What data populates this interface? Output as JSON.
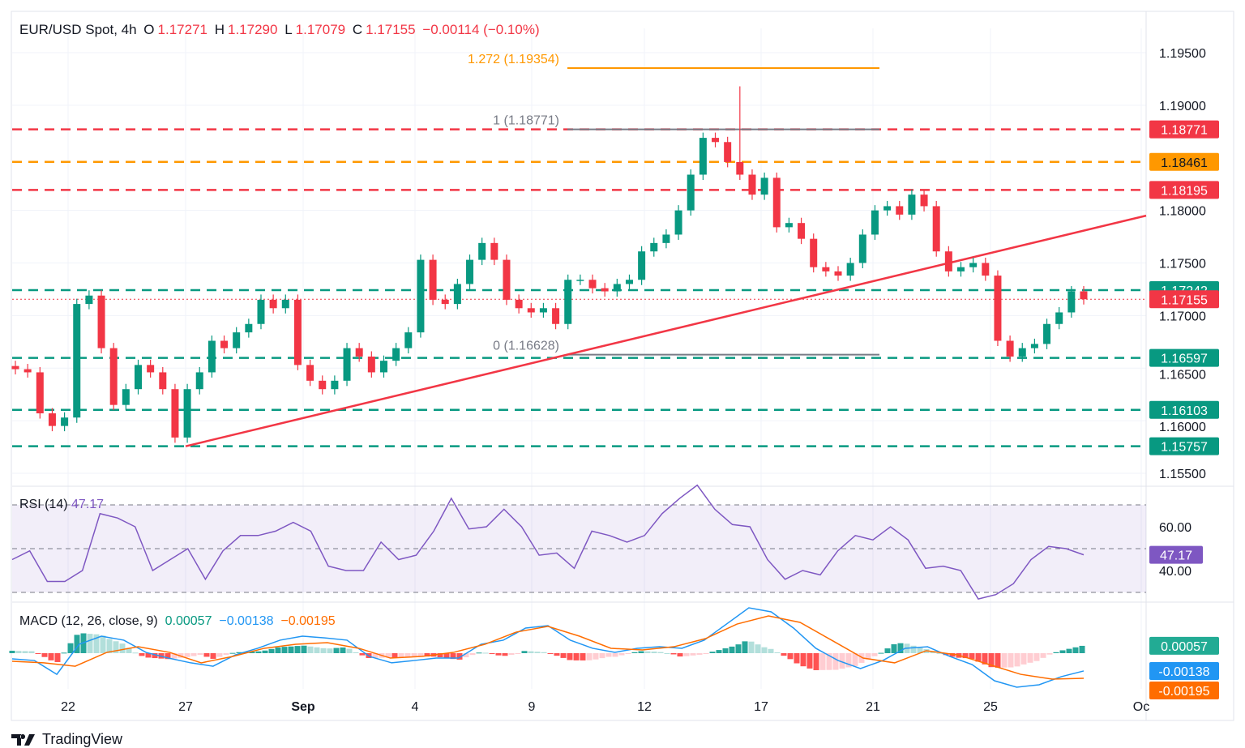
{
  "header": {
    "symbol": "EUR/USD Spot, 4h",
    "o_label": "O",
    "open": "1.17271",
    "h_label": "H",
    "high": "1.17290",
    "l_label": "L",
    "low": "1.17079",
    "c_label": "C",
    "close": "1.17155",
    "change": "−0.00114 (−0.10%)"
  },
  "colors": {
    "up": "#089981",
    "down": "#f23645",
    "fib": "#ff9800",
    "fib_grey": "#787b86",
    "rsi": "#7e57c2",
    "macd": "#2196f3",
    "signal": "#ff6d00",
    "hist_up": "#26a69a",
    "hist_down": "#ff5252"
  },
  "chart_data": [
    {
      "type": "candlestick",
      "title": "EUR/USD Spot, 4h",
      "ylim": [
        1.154,
        1.1975
      ],
      "y_ticks": [
        "1.19500",
        "1.19000",
        "1.18000",
        "1.17500",
        "1.17000",
        "1.16500",
        "1.16000",
        "1.15500"
      ],
      "x_ticks": [
        "22",
        "27",
        "Sep",
        "4",
        "9",
        "12",
        "17",
        "21",
        "25",
        "Oc"
      ],
      "closes": [
        1.1649,
        1.1646,
        1.1607,
        1.1595,
        1.1603,
        1.1711,
        1.1719,
        1.1669,
        1.1615,
        1.163,
        1.1653,
        1.1646,
        1.163,
        1.1584,
        1.163,
        1.1646,
        1.1676,
        1.1669,
        1.1684,
        1.1692,
        1.1715,
        1.1707,
        1.1715,
        1.1653,
        1.1638,
        1.163,
        1.1638,
        1.1669,
        1.1661,
        1.1646,
        1.1657,
        1.1669,
        1.1684,
        1.1753,
        1.1715,
        1.1711,
        1.173,
        1.1753,
        1.1769,
        1.1753,
        1.1715,
        1.1707,
        1.1703,
        1.1707,
        1.1692,
        1.1734,
        1.1734,
        1.1726,
        1.1723,
        1.173,
        1.1734,
        1.1761,
        1.1769,
        1.1777,
        1.18,
        1.1834,
        1.1869,
        1.1865,
        1.1846,
        1.1834,
        1.1815,
        1.1831,
        1.1784,
        1.1788,
        1.1773,
        1.1746,
        1.1742,
        1.1738,
        1.175,
        1.1777,
        1.18,
        1.1804,
        1.1796,
        1.1815,
        1.1804,
        1.1761,
        1.1742,
        1.1746,
        1.175,
        1.1738,
        1.1676,
        1.1661,
        1.1669,
        1.1673,
        1.1692,
        1.1703,
        1.1723,
        1.17155
      ],
      "spike_high": 1.1918,
      "levels": [
        {
          "price": 1.18771,
          "label": "1.18771",
          "color": "#f23645",
          "style": "dashed"
        },
        {
          "price": 1.18461,
          "label": "1.18461",
          "color": "#ff9800",
          "style": "dashed"
        },
        {
          "price": 1.18195,
          "label": "1.18195",
          "color": "#f23645",
          "style": "dashed"
        },
        {
          "price": 1.17242,
          "label": "1.17242",
          "color": "#089981",
          "style": "dashed"
        },
        {
          "price": 1.17155,
          "label": "1.17155",
          "color": "#f23645",
          "style": "dotted"
        },
        {
          "price": 1.16597,
          "label": "1.16597",
          "color": "#089981",
          "style": "dashed"
        },
        {
          "price": 1.16103,
          "label": "1.16103",
          "color": "#089981",
          "style": "dashed"
        },
        {
          "price": 1.15757,
          "label": "1.15757",
          "color": "#089981",
          "style": "dashed"
        }
      ],
      "fibonacci": [
        {
          "ratio_label": "1.272 (1.19354)",
          "price": 1.19354,
          "color": "#ff9800"
        },
        {
          "ratio_label": "1 (1.18771)",
          "price": 1.18771,
          "color": "#787b86"
        },
        {
          "ratio_label": "0 (1.16628)",
          "price": 1.16628,
          "color": "#787b86"
        }
      ],
      "trendline": {
        "start_price": 1.15757,
        "end_price": 1.1795,
        "color": "#f23645"
      }
    },
    {
      "type": "line",
      "title": "RSI (14)",
      "value_label": "47.17",
      "ylim": [
        25,
        82
      ],
      "bands": [
        70,
        50,
        30
      ],
      "y_ticks": [
        "60.00",
        "40.00"
      ],
      "values": [
        45,
        49,
        35,
        35,
        40,
        66,
        64,
        60,
        40,
        45,
        50,
        36,
        49,
        56,
        56,
        58,
        62,
        58,
        42,
        40,
        40,
        53,
        45,
        47,
        58,
        73,
        59,
        60,
        68,
        60,
        47,
        48,
        41,
        58,
        56,
        53,
        56,
        66,
        73,
        79,
        68,
        61,
        60,
        45,
        36,
        40,
        38,
        49,
        56,
        54,
        60,
        54,
        41,
        42,
        40,
        27,
        29,
        34,
        45,
        51,
        50,
        47.17
      ]
    },
    {
      "type": "line",
      "title": "MACD (12, 26, close, 9)",
      "histogram_label": "0.00057",
      "macd_label": "−0.00138",
      "signal_label": "−0.00195",
      "ylim": [
        -0.0028,
        0.0038
      ],
      "macd": [
        -0.00044,
        -0.00057,
        -0.00164,
        0.00069,
        0.00132,
        0.00101,
        6e-05,
        -0.00038,
        -0.00075,
        -0.00101,
        -0.00013,
        0.00038,
        0.00101,
        0.00132,
        0.00119,
        0.00101,
        -0.00025,
        -0.00075,
        -0.00057,
        -0.00038,
        -0.00038,
        0.00069,
        0.00101,
        0.00195,
        0.00214,
        0.00101,
        0.00038,
        6e-05,
        0.00038,
        0.0005,
        0.00038,
        0.00101,
        0.00226,
        0.00352,
        0.00321,
        0.00195,
        0.00038,
        -0.00057,
        -0.00119,
        -0.00057,
        0.00038,
        0.0005,
        -0.00025,
        -0.00088,
        -0.00214,
        -0.00264,
        -0.00245,
        -0.00182,
        -0.00138
      ],
      "signal": [
        -0.00063,
        -0.00075,
        -0.00101,
        6e-05,
        0.0005,
        6e-05,
        -0.00075,
        -0.00025,
        0.00038,
        0.00069,
        0.00082,
        0.00038,
        -0.00038,
        -0.00025,
        6e-05,
        0.00069,
        0.00164,
        0.00208,
        0.00132,
        0.00038,
        0.00025,
        0.0005,
        0.00113,
        0.00226,
        0.00289,
        0.00239,
        0.00101,
        -0.00038,
        -0.00075,
        0.00019,
        -0.00013,
        -0.00088,
        -0.00164,
        -0.00201,
        -0.00195
      ]
    }
  ],
  "footer": {
    "brand": "TradingView"
  }
}
